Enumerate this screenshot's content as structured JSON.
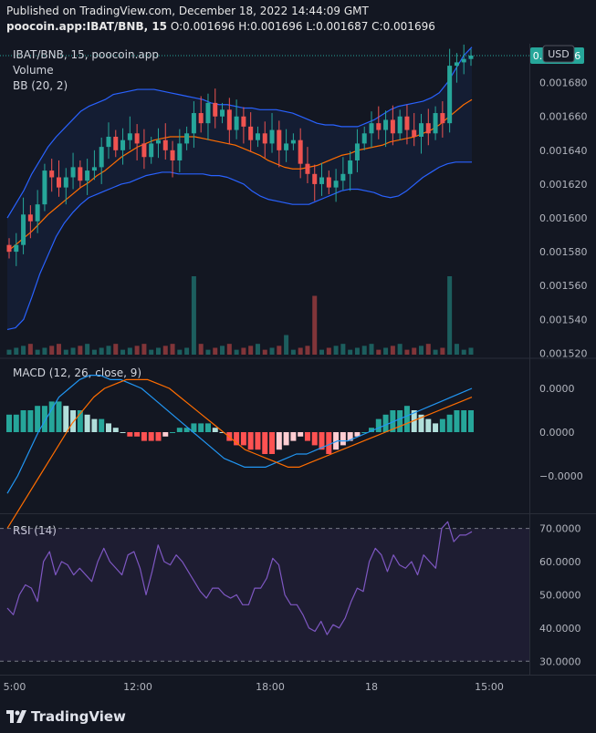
{
  "header": {
    "published": "Published on TradingView.com, December 18, 2022 14:44:09 GMT",
    "symbol": "poocoin.app:IBAT/BNB, 15",
    "ohlc": "O:0.001696 H:0.001696 L:0.001687 C:0.001696"
  },
  "legend": {
    "main": "IBAT/BNB, 15, poocoin.app",
    "volume": "Volume",
    "bb": "BB (20, 2)",
    "macd": "MACD (12, 26, close, 9)",
    "rsi": "RSI (14)"
  },
  "currency_button": "USD",
  "last_price": "0.001696",
  "brand": "TradingView",
  "colors": {
    "up": "#26a69a",
    "down": "#ef5350",
    "bb_band": "#2962ff",
    "bb_basis": "#ff6d00",
    "macd_line": "#2196f3",
    "signal_line": "#ff6d00",
    "rsi_line": "#7e57c2",
    "rsi_band_fill": "#7e57c2"
  },
  "chart_data": [
    {
      "type": "candlestick",
      "panel": "price",
      "title": "IBAT/BNB, 15, poocoin.app",
      "x_ticks": [
        "5:00",
        "12:00",
        "18:00",
        "18",
        "15:00"
      ],
      "y_ticks": [
        "0",
        "0.001680",
        "0.001660",
        "0.001640",
        "0.001620",
        "0.001600",
        "0.001580",
        "0.001560",
        "0.001540",
        "0.001520"
      ],
      "ylim": [
        0.0015175,
        0.001703
      ],
      "last_value": 0.001696,
      "close": [
        0.00158,
        0.001584,
        0.001602,
        0.001598,
        0.001608,
        0.001628,
        0.001624,
        0.001618,
        0.001624,
        0.00163,
        0.001622,
        0.001628,
        0.00163,
        0.001642,
        0.001648,
        0.00164,
        0.001646,
        0.00165,
        0.001644,
        0.001636,
        0.001644,
        0.001646,
        0.00164,
        0.001634,
        0.001644,
        0.00165,
        0.001662,
        0.001656,
        0.001668,
        0.00166,
        0.001664,
        0.001652,
        0.00166,
        0.001654,
        0.001646,
        0.00165,
        0.001644,
        0.001652,
        0.00164,
        0.001644,
        0.001646,
        0.001632,
        0.001626,
        0.00162,
        0.001624,
        0.001618,
        0.001622,
        0.001626,
        0.001634,
        0.001644,
        0.00165,
        0.001656,
        0.001652,
        0.001658,
        0.00165,
        0.00166,
        0.001652,
        0.001648,
        0.001656,
        0.00165,
        0.001662,
        0.001656,
        0.00169,
        0.001692,
        0.001694,
        0.001696
      ],
      "series": [
        {
          "name": "Upper",
          "values": [
            0.0016,
            0.001608,
            0.001616,
            0.001626,
            0.001634,
            0.001642,
            0.001648,
            0.001653,
            0.001658,
            0.001663,
            0.001666,
            0.001668,
            0.00167,
            0.001673,
            0.001674,
            0.001675,
            0.001676,
            0.001676,
            0.001676,
            0.001675,
            0.001674,
            0.001673,
            0.001672,
            0.001671,
            0.00167,
            0.001668,
            0.001667,
            0.001667,
            0.001666,
            0.001665,
            0.001665,
            0.001664,
            0.001664,
            0.001664,
            0.001663,
            0.001662,
            0.00166,
            0.001658,
            0.001656,
            0.001655,
            0.001655,
            0.001654,
            0.001654,
            0.001654,
            0.001656,
            0.001658,
            0.001661,
            0.001664,
            0.001666,
            0.001667,
            0.001668,
            0.001669,
            0.001671,
            0.001674,
            0.00168,
            0.001688,
            0.001696,
            0.001701
          ]
        },
        {
          "name": "Basis",
          "values": [
            0.00158,
            0.001584,
            0.001588,
            0.001592,
            0.001597,
            0.001602,
            0.001606,
            0.00161,
            0.001614,
            0.001618,
            0.001621,
            0.001625,
            0.001628,
            0.001632,
            0.001636,
            0.001639,
            0.001642,
            0.001644,
            0.001646,
            0.001647,
            0.001648,
            0.001648,
            0.001648,
            0.001648,
            0.001647,
            0.001646,
            0.001645,
            0.001644,
            0.001643,
            0.001641,
            0.001639,
            0.001637,
            0.001634,
            0.001632,
            0.00163,
            0.001629,
            0.001629,
            0.00163,
            0.001631,
            0.001633,
            0.001635,
            0.001637,
            0.001638,
            0.00164,
            0.001641,
            0.001642,
            0.001643,
            0.001645,
            0.001646,
            0.001647,
            0.001648,
            0.00165,
            0.001652,
            0.001655,
            0.001659,
            0.001663,
            0.001667,
            0.00167
          ]
        },
        {
          "name": "Lower",
          "values": [
            0.001534,
            0.001535,
            0.00154,
            0.001553,
            0.001567,
            0.001578,
            0.001589,
            0.001597,
            0.001603,
            0.001608,
            0.001612,
            0.001614,
            0.001616,
            0.001618,
            0.00162,
            0.001621,
            0.001623,
            0.001625,
            0.001626,
            0.001627,
            0.001627,
            0.001626,
            0.001626,
            0.001626,
            0.001626,
            0.001625,
            0.001625,
            0.001624,
            0.001622,
            0.00162,
            0.001616,
            0.001613,
            0.001611,
            0.00161,
            0.001609,
            0.001608,
            0.001608,
            0.001608,
            0.00161,
            0.001612,
            0.001614,
            0.001616,
            0.001617,
            0.001617,
            0.001616,
            0.001615,
            0.001613,
            0.001612,
            0.001613,
            0.001616,
            0.00162,
            0.001624,
            0.001627,
            0.00163,
            0.001632,
            0.001633,
            0.001633,
            0.001633
          ]
        }
      ]
    },
    {
      "type": "bar",
      "panel": "volume",
      "title": "Volume",
      "values": [
        1,
        1,
        1,
        1,
        1,
        1,
        1,
        1,
        1,
        1,
        1,
        1,
        1,
        1,
        1,
        1,
        1,
        1,
        1,
        1,
        1,
        1,
        1,
        1,
        1,
        1,
        8,
        1,
        1,
        1,
        1,
        1,
        1,
        1,
        1,
        1,
        1,
        1,
        1,
        2,
        1,
        1,
        1,
        6,
        1,
        1,
        1,
        1,
        1,
        1,
        1,
        1,
        1,
        1,
        1,
        1,
        1,
        1,
        1,
        1,
        1,
        1,
        8,
        1,
        1,
        1
      ]
    },
    {
      "type": "bar",
      "panel": "macd",
      "title": "MACD (12, 26, close, 9)",
      "y_ticks": [
        "0.0000",
        "0.0000",
        "−0.0000"
      ],
      "histogram": [
        4,
        4,
        5,
        5,
        6,
        6,
        7,
        7,
        6,
        5,
        5,
        4,
        3,
        3,
        2,
        1,
        0,
        -1,
        -1,
        -2,
        -2,
        -2,
        -1,
        0,
        1,
        1,
        2,
        2,
        2,
        1,
        0,
        -2,
        -3,
        -3,
        -4,
        -4,
        -5,
        -5,
        -4,
        -3,
        -2,
        -1,
        -2,
        -3,
        -4,
        -5,
        -4,
        -3,
        -2,
        -1,
        0,
        1,
        3,
        4,
        5,
        5,
        6,
        5,
        4,
        3,
        2,
        3,
        4,
        5,
        5,
        5
      ],
      "series": [
        {
          "name": "MACD",
          "values": [
            -14,
            -10,
            -5,
            0,
            4,
            8,
            10,
            12,
            13,
            13,
            12,
            12,
            11,
            10,
            8,
            6,
            4,
            2,
            0,
            -2,
            -4,
            -6,
            -7,
            -8,
            -8,
            -8,
            -7,
            -6,
            -5,
            -5,
            -4,
            -3,
            -2,
            -2,
            -1,
            0,
            1,
            2,
            3,
            4,
            5,
            6,
            7,
            8,
            9,
            10
          ]
        },
        {
          "name": "Signal",
          "values": [
            -22,
            -18,
            -14,
            -10,
            -6,
            -2,
            2,
            5,
            8,
            10,
            11,
            12,
            12,
            12,
            11,
            10,
            8,
            6,
            4,
            2,
            0,
            -2,
            -4,
            -5,
            -6,
            -7,
            -8,
            -8,
            -7,
            -6,
            -5,
            -4,
            -3,
            -2,
            -1,
            0,
            1,
            2,
            3,
            4,
            5,
            6,
            7,
            8
          ]
        }
      ]
    },
    {
      "type": "line",
      "panel": "rsi",
      "title": "RSI (14)",
      "y_ticks": [
        "70.0000",
        "60.0000",
        "50.0000",
        "40.0000",
        "30.0000"
      ],
      "ylim": [
        26.5,
        74
      ],
      "bands": [
        30,
        70
      ],
      "series": [
        {
          "name": "RSI",
          "values": [
            46,
            44,
            50,
            53,
            52,
            48,
            60,
            63,
            56,
            60,
            59,
            56,
            58,
            56,
            54,
            60,
            64,
            60,
            58,
            56,
            62,
            63,
            58,
            50,
            57,
            65,
            60,
            59,
            62,
            60,
            57,
            54,
            51,
            49,
            52,
            52,
            50,
            49,
            50,
            47,
            47,
            52,
            52,
            55,
            61,
            59,
            50,
            47,
            47,
            44,
            40,
            39,
            42,
            38,
            41,
            40,
            43,
            48,
            52,
            51,
            60,
            64,
            62,
            57,
            62,
            59,
            58,
            60,
            56,
            62,
            60,
            58,
            70,
            72,
            66,
            68,
            68,
            69
          ]
        }
      ]
    }
  ]
}
